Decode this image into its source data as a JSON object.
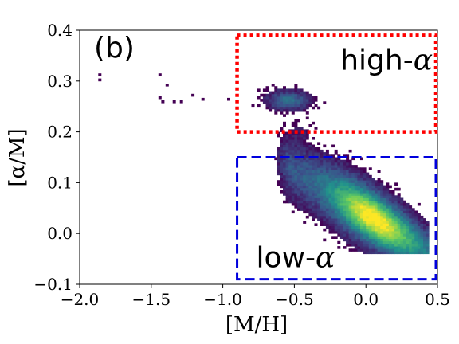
{
  "chart_data": {
    "type": "heatmap",
    "panel_label": "(b)",
    "xlabel": "[M/H]",
    "ylabel": "[α/M]",
    "xlim": [
      -2.0,
      0.5
    ],
    "ylim": [
      -0.1,
      0.4
    ],
    "x_ticks": [
      -2.0,
      -1.5,
      -1.0,
      -0.5,
      0.0,
      0.5
    ],
    "x_tick_labels": [
      "−2.0",
      "−1.5",
      "−1.0",
      "−0.5",
      "0.0",
      "0.5"
    ],
    "y_ticks": [
      -0.1,
      0.0,
      0.1,
      0.2,
      0.3,
      0.4
    ],
    "y_tick_labels": [
      "−0.1",
      "0.0",
      "0.1",
      "0.2",
      "0.3",
      "0.4"
    ],
    "colormap": "viridis",
    "colormap_stops": [
      "#440154",
      "#3b528b",
      "#21918c",
      "#5ec962",
      "#fde725"
    ],
    "density_features": [
      {
        "description": "low-alpha sequence",
        "x": [
          -0.5,
          0.05,
          0.4
        ],
        "y": [
          0.1,
          0.0,
          -0.01
        ],
        "peak": 1.0
      },
      {
        "description": "high-alpha clump",
        "x": -0.55,
        "y": 0.26,
        "peak": 0.35
      }
    ],
    "sparse_points": [
      {
        "x": -1.87,
        "y": 0.31
      },
      {
        "x": -1.87,
        "y": 0.3
      },
      {
        "x": -1.45,
        "y": 0.31
      },
      {
        "x": -1.4,
        "y": 0.29
      },
      {
        "x": -1.45,
        "y": 0.265
      },
      {
        "x": -1.43,
        "y": 0.257
      },
      {
        "x": -1.35,
        "y": 0.257
      },
      {
        "x": -1.3,
        "y": 0.257
      },
      {
        "x": -1.22,
        "y": 0.27
      },
      {
        "x": -1.15,
        "y": 0.262
      },
      {
        "x": -0.97,
        "y": 0.262
      }
    ],
    "regions": [
      {
        "name": "high-alpha",
        "label": "high-",
        "greek": "α",
        "x": [
          -0.9,
          0.5
        ],
        "y": [
          0.2,
          0.39
        ],
        "color": "#ff0000",
        "style": "dotted"
      },
      {
        "name": "low-alpha",
        "label": "low-",
        "greek": "α",
        "x": [
          -0.9,
          0.5
        ],
        "y": [
          -0.09,
          0.15
        ],
        "color": "#0000dd",
        "style": "dashed"
      }
    ]
  }
}
